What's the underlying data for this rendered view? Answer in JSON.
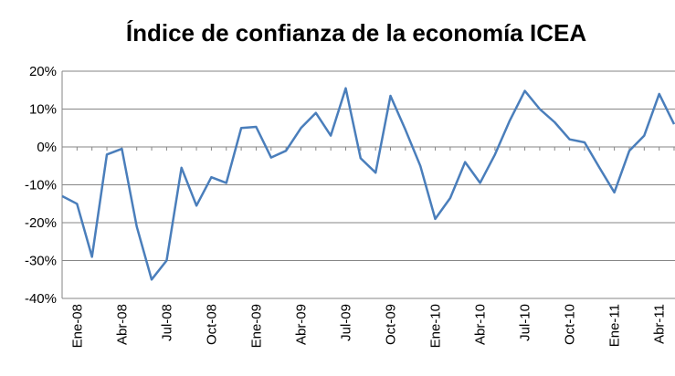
{
  "chart_data": {
    "type": "line",
    "title": "Índice de confianza de la economía ICEA",
    "categories": [
      null,
      "Ene-08",
      null,
      null,
      "Abr-08",
      null,
      null,
      "Jul-08",
      null,
      null,
      "Oct-08",
      null,
      null,
      "Ene-09",
      null,
      null,
      "Abr-09",
      null,
      null,
      "Jul-09",
      null,
      null,
      "Oct-09",
      null,
      null,
      "Ene-10",
      null,
      null,
      "Abr-10",
      null,
      null,
      "Jul-10",
      null,
      null,
      "Oct-10",
      null,
      null,
      "Ene-11",
      null,
      null,
      "Abr-11",
      null
    ],
    "values": [
      -13,
      -15,
      -29,
      -2,
      -0.5,
      -21,
      -35,
      -30,
      -5.5,
      -15.5,
      -8,
      -9.5,
      5,
      5.3,
      -2.8,
      -1,
      5,
      9,
      3,
      15.5,
      -3,
      -6.8,
      13.5,
      4.5,
      -5,
      -19,
      -13.5,
      -4,
      -9.5,
      -2,
      7,
      14.8,
      10,
      6.5,
      2,
      1.2,
      -5.5,
      -12,
      -1,
      3,
      14,
      6
    ],
    "color": "#4a7ebb",
    "ylim": [
      -40,
      20
    ],
    "yticks": [
      {
        "value": -40,
        "label": "-40%"
      },
      {
        "value": -30,
        "label": "-30%"
      },
      {
        "value": -20,
        "label": "-20%"
      },
      {
        "value": -10,
        "label": "-10%"
      },
      {
        "value": 0,
        "label": "0%"
      },
      {
        "value": 10,
        "label": "10%"
      },
      {
        "value": 20,
        "label": "20%"
      }
    ],
    "grid": true
  }
}
